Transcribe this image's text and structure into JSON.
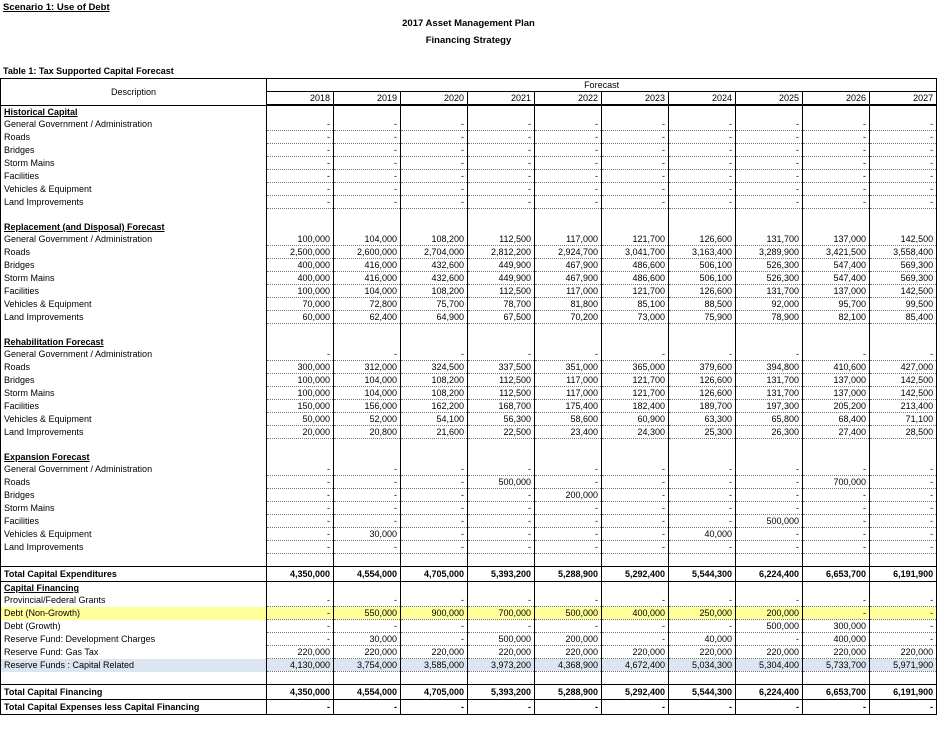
{
  "header": {
    "scenario": "Scenario 1: Use of Debt",
    "plan_title": "2017 Asset Management Plan",
    "strategy_title": "Financing Strategy",
    "table_title": "Table 1: Tax Supported Capital Forecast"
  },
  "columns": {
    "description": "Description",
    "forecast": "Forecast",
    "years": [
      "2018",
      "2019",
      "2020",
      "2021",
      "2022",
      "2023",
      "2024",
      "2025",
      "2026",
      "2027"
    ]
  },
  "rows": [
    {
      "type": "section",
      "label": "Historical Capital"
    },
    {
      "type": "item",
      "label": "General Government / Administration",
      "values": [
        "-",
        "-",
        "-",
        "-",
        "-",
        "-",
        "-",
        "-",
        "-",
        "-"
      ]
    },
    {
      "type": "item",
      "label": "Roads",
      "values": [
        "-",
        "-",
        "-",
        "-",
        "-",
        "-",
        "-",
        "-",
        "-",
        "-"
      ]
    },
    {
      "type": "item",
      "label": "Bridges",
      "values": [
        "-",
        "-",
        "-",
        "-",
        "-",
        "-",
        "-",
        "-",
        "-",
        "-"
      ]
    },
    {
      "type": "item",
      "label": "Storm Mains",
      "values": [
        "-",
        "-",
        "-",
        "-",
        "-",
        "-",
        "-",
        "-",
        "-",
        "-"
      ]
    },
    {
      "type": "item",
      "label": "Facilities",
      "values": [
        "-",
        "-",
        "-",
        "-",
        "-",
        "-",
        "-",
        "-",
        "-",
        "-"
      ]
    },
    {
      "type": "item",
      "label": "Vehicles & Equipment",
      "values": [
        "-",
        "-",
        "-",
        "-",
        "-",
        "-",
        "-",
        "-",
        "-",
        "-"
      ]
    },
    {
      "type": "item",
      "label": "Land Improvements",
      "values": [
        "-",
        "-",
        "-",
        "-",
        "-",
        "-",
        "-",
        "-",
        "-",
        "-"
      ]
    },
    {
      "type": "blank"
    },
    {
      "type": "section",
      "label": "Replacement (and Disposal) Forecast"
    },
    {
      "type": "item",
      "label": "General Government / Administration",
      "values": [
        "100,000",
        "104,000",
        "108,200",
        "112,500",
        "117,000",
        "121,700",
        "126,600",
        "131,700",
        "137,000",
        "142,500"
      ]
    },
    {
      "type": "item",
      "label": "Roads",
      "values": [
        "2,500,000",
        "2,600,000",
        "2,704,000",
        "2,812,200",
        "2,924,700",
        "3,041,700",
        "3,163,400",
        "3,289,900",
        "3,421,500",
        "3,558,400"
      ]
    },
    {
      "type": "item",
      "label": "Bridges",
      "values": [
        "400,000",
        "416,000",
        "432,600",
        "449,900",
        "467,900",
        "486,600",
        "506,100",
        "526,300",
        "547,400",
        "569,300"
      ]
    },
    {
      "type": "item",
      "label": "Storm Mains",
      "values": [
        "400,000",
        "416,000",
        "432,600",
        "449,900",
        "467,900",
        "486,600",
        "506,100",
        "526,300",
        "547,400",
        "569,300"
      ]
    },
    {
      "type": "item",
      "label": "Facilities",
      "values": [
        "100,000",
        "104,000",
        "108,200",
        "112,500",
        "117,000",
        "121,700",
        "126,600",
        "131,700",
        "137,000",
        "142,500"
      ]
    },
    {
      "type": "item",
      "label": "Vehicles & Equipment",
      "values": [
        "70,000",
        "72,800",
        "75,700",
        "78,700",
        "81,800",
        "85,100",
        "88,500",
        "92,000",
        "95,700",
        "99,500"
      ]
    },
    {
      "type": "item",
      "label": "Land Improvements",
      "values": [
        "60,000",
        "62,400",
        "64,900",
        "67,500",
        "70,200",
        "73,000",
        "75,900",
        "78,900",
        "82,100",
        "85,400"
      ]
    },
    {
      "type": "blank"
    },
    {
      "type": "section",
      "label": "Rehabilitation Forecast"
    },
    {
      "type": "item",
      "label": "General Government / Administration",
      "values": [
        "-",
        "-",
        "-",
        "-",
        "-",
        "-",
        "-",
        "-",
        "-",
        "-"
      ]
    },
    {
      "type": "item",
      "label": "Roads",
      "values": [
        "300,000",
        "312,000",
        "324,500",
        "337,500",
        "351,000",
        "365,000",
        "379,600",
        "394,800",
        "410,600",
        "427,000"
      ]
    },
    {
      "type": "item",
      "label": "Bridges",
      "values": [
        "100,000",
        "104,000",
        "108,200",
        "112,500",
        "117,000",
        "121,700",
        "126,600",
        "131,700",
        "137,000",
        "142,500"
      ]
    },
    {
      "type": "item",
      "label": "Storm Mains",
      "values": [
        "100,000",
        "104,000",
        "108,200",
        "112,500",
        "117,000",
        "121,700",
        "126,600",
        "131,700",
        "137,000",
        "142,500"
      ]
    },
    {
      "type": "item",
      "label": "Facilities",
      "values": [
        "150,000",
        "156,000",
        "162,200",
        "168,700",
        "175,400",
        "182,400",
        "189,700",
        "197,300",
        "205,200",
        "213,400"
      ]
    },
    {
      "type": "item",
      "label": "Vehicles & Equipment",
      "values": [
        "50,000",
        "52,000",
        "54,100",
        "56,300",
        "58,600",
        "60,900",
        "63,300",
        "65,800",
        "68,400",
        "71,100"
      ]
    },
    {
      "type": "item",
      "label": "Land Improvements",
      "values": [
        "20,000",
        "20,800",
        "21,600",
        "22,500",
        "23,400",
        "24,300",
        "25,300",
        "26,300",
        "27,400",
        "28,500"
      ]
    },
    {
      "type": "blank"
    },
    {
      "type": "section",
      "label": "Expansion Forecast"
    },
    {
      "type": "item",
      "label": "General Government / Administration",
      "values": [
        "-",
        "-",
        "-",
        "-",
        "-",
        "-",
        "-",
        "-",
        "-",
        "-"
      ]
    },
    {
      "type": "item",
      "label": "Roads",
      "values": [
        "-",
        "-",
        "-",
        "500,000",
        "-",
        "-",
        "-",
        "-",
        "700,000",
        "-"
      ]
    },
    {
      "type": "item",
      "label": "Bridges",
      "values": [
        "-",
        "-",
        "-",
        "-",
        "200,000",
        "-",
        "-",
        "-",
        "-",
        "-"
      ]
    },
    {
      "type": "item",
      "label": "Storm Mains",
      "values": [
        "-",
        "-",
        "-",
        "-",
        "-",
        "-",
        "-",
        "-",
        "-",
        "-"
      ]
    },
    {
      "type": "item",
      "label": "Facilities",
      "values": [
        "-",
        "-",
        "-",
        "-",
        "-",
        "-",
        "-",
        "500,000",
        "-",
        "-"
      ]
    },
    {
      "type": "item",
      "label": "Vehicles & Equipment",
      "values": [
        "-",
        "30,000",
        "-",
        "-",
        "-",
        "-",
        "40,000",
        "-",
        "-",
        "-"
      ]
    },
    {
      "type": "item",
      "label": "Land Improvements",
      "values": [
        "-",
        "-",
        "-",
        "-",
        "-",
        "-",
        "-",
        "-",
        "-",
        "-"
      ]
    },
    {
      "type": "blank"
    },
    {
      "type": "total",
      "label": "Total Capital Expenditures",
      "values": [
        "4,350,000",
        "4,554,000",
        "4,705,000",
        "5,393,200",
        "5,288,900",
        "5,292,400",
        "5,544,300",
        "6,224,400",
        "6,653,700",
        "6,191,900"
      ]
    },
    {
      "type": "section",
      "label": "Capital Financing"
    },
    {
      "type": "item",
      "label": "Provincial/Federal Grants",
      "values": [
        "-",
        "-",
        "-",
        "-",
        "-",
        "-",
        "-",
        "-",
        "-",
        "-"
      ]
    },
    {
      "type": "item",
      "style": "yellow",
      "label": "Debt (Non-Growth)",
      "values": [
        "-",
        "550,000",
        "900,000",
        "700,000",
        "500,000",
        "400,000",
        "250,000",
        "200,000",
        "-",
        "-"
      ]
    },
    {
      "type": "item",
      "label": "Debt (Growth)",
      "values": [
        "-",
        "-",
        "-",
        "-",
        "-",
        "-",
        "-",
        "500,000",
        "300,000",
        "-"
      ]
    },
    {
      "type": "item",
      "label": "Reserve Fund: Development Charges",
      "values": [
        "-",
        "30,000",
        "-",
        "500,000",
        "200,000",
        "-",
        "40,000",
        "-",
        "400,000",
        "-"
      ]
    },
    {
      "type": "item",
      "label": "Reserve Fund: Gas Tax",
      "values": [
        "220,000",
        "220,000",
        "220,000",
        "220,000",
        "220,000",
        "220,000",
        "220,000",
        "220,000",
        "220,000",
        "220,000"
      ]
    },
    {
      "type": "item",
      "style": "blue",
      "label": "Reserve Funds : Capital Related",
      "values": [
        "4,130,000",
        "3,754,000",
        "3,585,000",
        "3,973,200",
        "4,368,900",
        "4,672,400",
        "5,034,300",
        "5,304,400",
        "5,733,700",
        "5,971,900"
      ]
    },
    {
      "type": "blank"
    },
    {
      "type": "total",
      "label": "Total Capital Financing",
      "values": [
        "4,350,000",
        "4,554,000",
        "4,705,000",
        "5,393,200",
        "5,288,900",
        "5,292,400",
        "5,544,300",
        "6,224,400",
        "6,653,700",
        "6,191,900"
      ]
    },
    {
      "type": "total",
      "label": "Total Capital Expenses less Capital Financing",
      "values": [
        "-",
        "-",
        "-",
        "-",
        "-",
        "-",
        "-",
        "-",
        "-",
        "-"
      ]
    }
  ]
}
